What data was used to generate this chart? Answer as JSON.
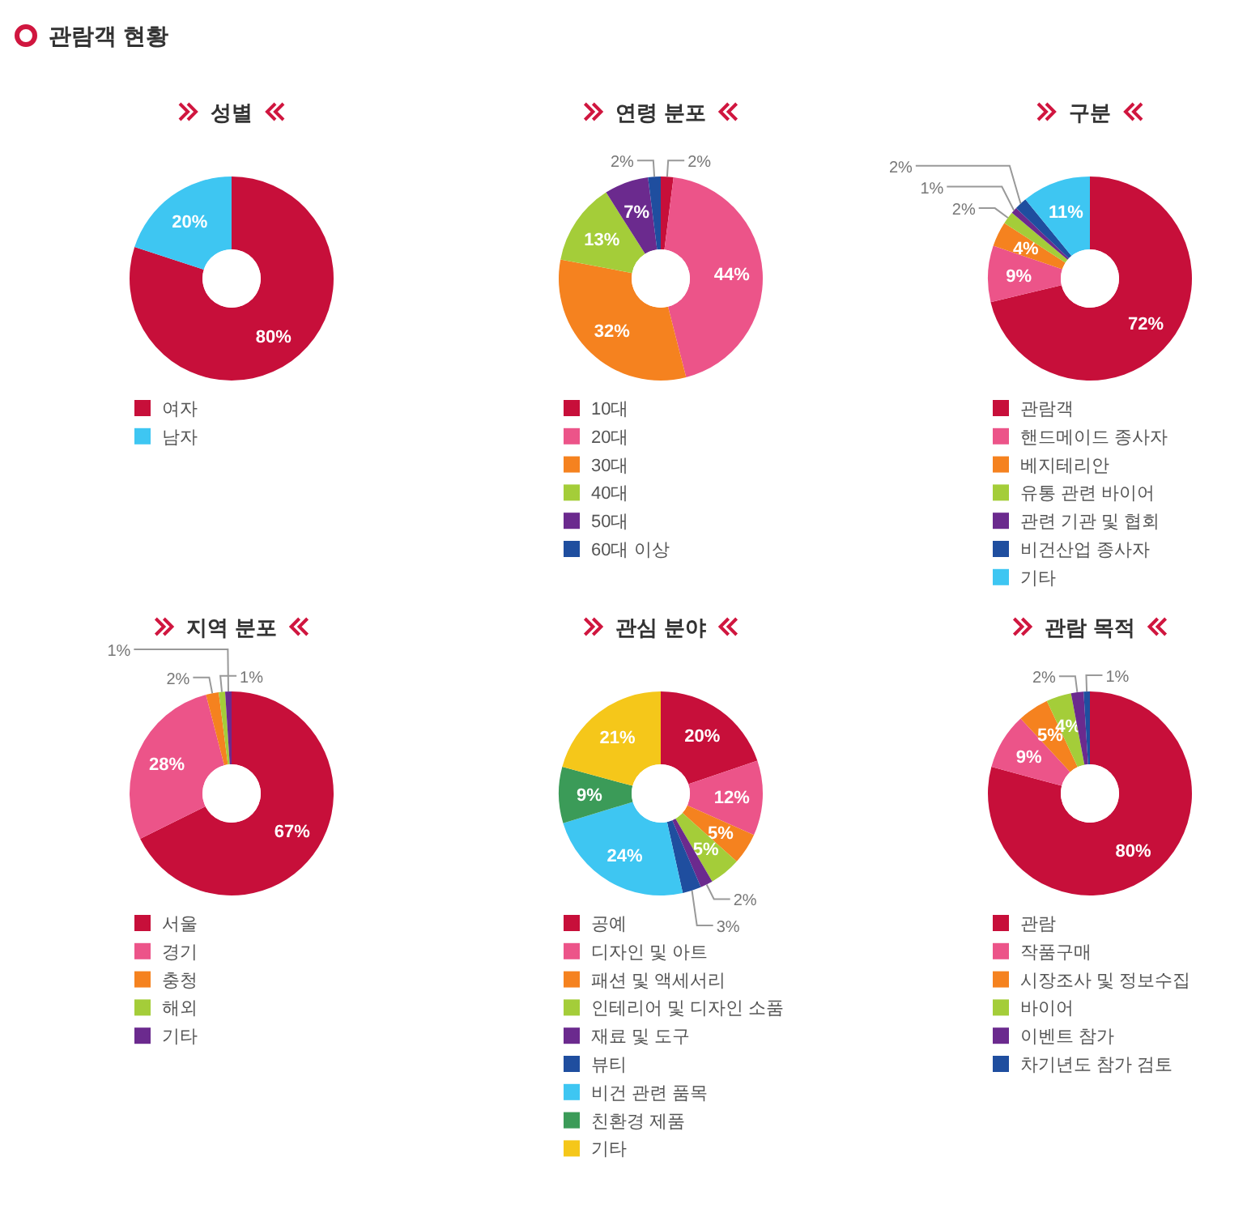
{
  "chart_data": [
    {
      "type": "donut",
      "title": "성별",
      "annotations": [
        "관람객 현황"
      ],
      "categories": [
        "여자",
        "남자"
      ],
      "values": [
        80,
        20
      ],
      "value_labels": [
        "80%",
        "20%"
      ],
      "colors": [
        "#c70f3a",
        "#3ec6f2"
      ],
      "legend": "bottom"
    },
    {
      "type": "donut",
      "title": "연령 분포",
      "categories": [
        "10대",
        "20대",
        "30대",
        "40대",
        "50대",
        "60대 이상"
      ],
      "values": [
        2,
        44,
        32,
        13,
        7,
        2
      ],
      "value_labels": [
        "2%",
        "44%",
        "32%",
        "13%",
        "7%",
        "2%"
      ],
      "colors": [
        "#c70f3a",
        "#ec5489",
        "#f5821f",
        "#a4cd39",
        "#6b2a8e",
        "#1f4e9f"
      ],
      "legend": "bottom"
    },
    {
      "type": "donut",
      "title": "구분",
      "categories": [
        "관람객",
        "핸드메이드 종사자",
        "베지테리안",
        "유통 관련 바이어",
        "관련 기관 및 협회",
        "비건산업 종사자",
        "기타"
      ],
      "values": [
        72,
        9,
        4,
        2,
        1,
        2,
        11
      ],
      "value_labels": [
        "72%",
        "9%",
        "4%",
        "2%",
        "1%",
        "2%",
        "11%"
      ],
      "colors": [
        "#c70f3a",
        "#ec5489",
        "#f5821f",
        "#a4cd39",
        "#6b2a8e",
        "#1f4e9f",
        "#3ec6f2"
      ],
      "legend": "bottom"
    },
    {
      "type": "donut",
      "title": "지역 분포",
      "categories": [
        "서울",
        "경기",
        "충청",
        "해외",
        "기타"
      ],
      "values": [
        67,
        28,
        2,
        1,
        1
      ],
      "value_labels": [
        "67%",
        "28%",
        "2%",
        "1%",
        "1%"
      ],
      "colors": [
        "#c70f3a",
        "#ec5489",
        "#f5821f",
        "#a4cd39",
        "#6b2a8e"
      ],
      "legend": "bottom"
    },
    {
      "type": "donut",
      "title": "관심 분야",
      "categories": [
        "공예",
        "디자인 및 아트",
        "패션 및 액세서리",
        "인테리어 및 디자인 소품",
        "재료 및 도구",
        "뷰티",
        "비건 관련 품목",
        "친환경 제품",
        "기타"
      ],
      "values": [
        20,
        12,
        5,
        5,
        2,
        3,
        24,
        9,
        21
      ],
      "value_labels": [
        "20%",
        "12%",
        "5%",
        "5%",
        "2%",
        "3%",
        "24%",
        "9%",
        "21%"
      ],
      "colors": [
        "#c70f3a",
        "#ec5489",
        "#f5821f",
        "#a4cd39",
        "#6b2a8e",
        "#1f4e9f",
        "#3ec6f2",
        "#3b9b58",
        "#f5c71a"
      ],
      "legend": "bottom"
    },
    {
      "type": "donut",
      "title": "관람 목적",
      "categories": [
        "관람",
        "작품구매",
        "시장조사 및 정보수집",
        "바이어",
        "이벤트 참가",
        "차기년도 참가 검토"
      ],
      "values": [
        80,
        9,
        5,
        4,
        2,
        1
      ],
      "value_labels": [
        "80%",
        "9%",
        "5%",
        "4%",
        "2%",
        "1%"
      ],
      "colors": [
        "#c70f3a",
        "#ec5489",
        "#f5821f",
        "#a4cd39",
        "#6b2a8e",
        "#1f4e9f"
      ],
      "legend": "bottom"
    }
  ]
}
